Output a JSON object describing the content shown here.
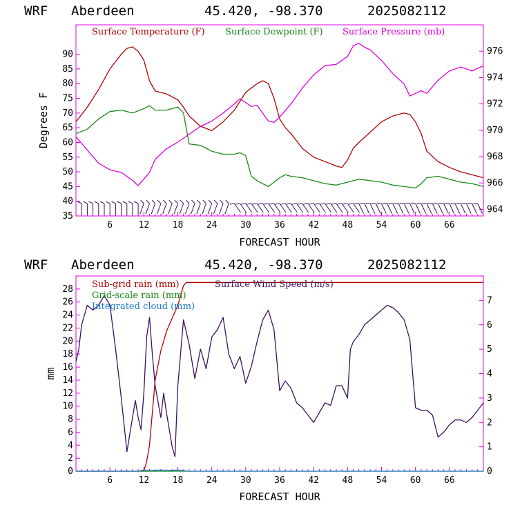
{
  "chart_data": [
    {
      "type": "line",
      "header": {
        "model": "WRF",
        "station": "Aberdeen",
        "coords": "45.420, -98.370",
        "init": "2025082112"
      },
      "xlabel": "FORECAST HOUR",
      "ylabel": "Degrees F",
      "xlim": [
        0,
        72
      ],
      "xticks": [
        "6",
        "12",
        "18",
        "24",
        "30",
        "36",
        "42",
        "48",
        "54",
        "60",
        "66"
      ],
      "ylim_left": [
        35,
        100
      ],
      "yticks_left": [
        "35",
        "40",
        "45",
        "50",
        "55",
        "60",
        "65",
        "70",
        "75",
        "80",
        "85",
        "90"
      ],
      "ylim_right": [
        963.5,
        978
      ],
      "yticks_right": [
        "964",
        "966",
        "968",
        "970",
        "972",
        "974",
        "976"
      ],
      "legend": [
        "Surface Temperature (F)",
        "Surface Dewpoint (F)",
        "Surface Pressure (mb)"
      ],
      "colors": {
        "temperature": "#b00000",
        "dewpoint": "#168816",
        "pressure": "#e000e0",
        "wind_barbs": "#3a1060"
      },
      "series": [
        {
          "name": "Surface Temperature (F)",
          "axis": "left",
          "x": [
            0,
            2,
            4,
            6,
            8,
            9,
            10,
            11,
            12,
            13,
            14,
            16,
            18,
            19,
            20,
            22,
            24,
            26,
            28,
            30,
            32,
            33,
            34,
            35,
            36,
            37,
            38,
            40,
            42,
            44,
            46,
            47,
            48,
            49,
            50,
            52,
            54,
            56,
            58,
            59,
            60,
            61,
            62,
            64,
            66,
            68,
            70,
            72
          ],
          "values": [
            67,
            72,
            78,
            85,
            90,
            92,
            92.5,
            91,
            88,
            81,
            77.5,
            76.5,
            74.5,
            72,
            69,
            65.5,
            64,
            67,
            71,
            77,
            80,
            81,
            80,
            75,
            68,
            65,
            63,
            58,
            55,
            53.5,
            52,
            51.5,
            54,
            58,
            60,
            63.5,
            67,
            69,
            70,
            69.5,
            67,
            63,
            57,
            53.5,
            51.5,
            50,
            49,
            48
          ]
        },
        {
          "name": "Surface Dewpoint (F)",
          "axis": "left",
          "x": [
            0,
            2,
            4,
            6,
            8,
            10,
            12,
            13,
            14,
            16,
            18,
            19,
            20,
            22,
            24,
            26,
            28,
            29,
            30,
            31,
            32,
            34,
            36,
            37,
            38,
            40,
            42,
            44,
            46,
            48,
            50,
            52,
            54,
            56,
            58,
            60,
            61,
            62,
            64,
            66,
            68,
            70,
            72
          ],
          "values": [
            63,
            64.5,
            68,
            70.5,
            71,
            70,
            71.5,
            72.5,
            71,
            71,
            72,
            70,
            59.5,
            59,
            57,
            56,
            56,
            56.5,
            55.5,
            48.5,
            47,
            45,
            48,
            49,
            48.5,
            48,
            47,
            46,
            45.5,
            46.5,
            47.5,
            47,
            46.5,
            45.5,
            45,
            44.5,
            46,
            48,
            48.5,
            47.5,
            46.5,
            46,
            45
          ]
        },
        {
          "name": "Surface Pressure (mb)",
          "axis": "right",
          "x": [
            0,
            1,
            2,
            4,
            6,
            8,
            10,
            11,
            12,
            13,
            14,
            16,
            18,
            20,
            22,
            24,
            26,
            28,
            29,
            30,
            31,
            32,
            34,
            35,
            36,
            38,
            40,
            42,
            44,
            46,
            48,
            49,
            50,
            51,
            52,
            54,
            56,
            58,
            59,
            60,
            61,
            62,
            64,
            66,
            68,
            70,
            72
          ],
          "values": [
            969.5,
            969,
            968.5,
            967.5,
            967,
            966.8,
            966.2,
            965.8,
            966.3,
            966.8,
            967.8,
            968.6,
            969.1,
            969.7,
            970.3,
            970.7,
            971.3,
            972,
            972.4,
            972.1,
            971.8,
            971.9,
            970.7,
            970.6,
            971,
            972,
            973.2,
            974.2,
            974.9,
            975,
            975.6,
            976.4,
            976.6,
            976.3,
            976.1,
            975.3,
            974.3,
            973.5,
            972.6,
            972.8,
            973,
            972.8,
            973.8,
            974.5,
            974.8,
            974.5,
            974.9
          ]
        }
      ],
      "wind_barbs_hours": [
        1,
        2,
        3,
        4,
        5,
        6,
        7,
        8,
        9,
        10,
        11,
        12,
        13,
        14,
        15,
        16,
        17,
        18,
        19,
        20,
        21,
        22,
        23,
        24,
        25,
        26,
        27,
        28,
        29,
        30,
        31,
        32,
        33,
        34,
        35,
        36,
        37,
        38,
        39,
        40,
        41,
        42,
        43,
        44,
        45,
        46,
        47,
        48,
        49,
        50,
        51,
        52,
        53,
        54,
        55,
        56,
        57,
        58,
        59,
        60,
        61,
        62,
        63,
        64,
        65,
        66,
        67,
        68,
        69,
        70,
        71
      ]
    },
    {
      "type": "line",
      "header": {
        "model": "WRF",
        "station": "Aberdeen",
        "coords": "45.420, -98.370",
        "init": "2025082112"
      },
      "xlabel": "FORECAST HOUR",
      "ylabel": "mm",
      "xlim": [
        0,
        72
      ],
      "xticks": [
        "6",
        "12",
        "18",
        "24",
        "30",
        "36",
        "42",
        "48",
        "54",
        "60",
        "66"
      ],
      "ylim_left": [
        0,
        30
      ],
      "yticks_left": [
        "0",
        "2",
        "4",
        "6",
        "8",
        "10",
        "12",
        "14",
        "16",
        "18",
        "20",
        "22",
        "24",
        "26",
        "28"
      ],
      "ylim_right": [
        0,
        8
      ],
      "yticks_right": [
        "0",
        "1",
        "2",
        "3",
        "4",
        "5",
        "6",
        "7"
      ],
      "legend": [
        "Sub-grid rain (mm)",
        "Grid-scale rain (mm)",
        "Integrated cloud (mm)",
        "Surface Wind Speed (m/s)"
      ],
      "colors": {
        "subgrid": "#b00000",
        "gridscale": "#168816",
        "cloud": "#1a7acc",
        "wind": "#3a1060"
      },
      "series": [
        {
          "name": "Sub-grid rain (mm)",
          "axis": "left",
          "x": [
            0,
            12,
            12.5,
            13,
            13.5,
            14,
            15,
            16,
            17,
            18,
            19,
            19.5,
            72
          ],
          "values": [
            0,
            0,
            1.5,
            4,
            9,
            14,
            18.5,
            21.5,
            23.5,
            25.5,
            28.5,
            29,
            29
          ]
        },
        {
          "name": "Grid-scale rain (mm)",
          "axis": "left",
          "x": [
            0,
            72
          ],
          "values": [
            0,
            0
          ]
        },
        {
          "name": "Integrated cloud (mm)",
          "axis": "left",
          "x": [
            0,
            11,
            12,
            13,
            14,
            15,
            16,
            17,
            18,
            19,
            20,
            72
          ],
          "values": [
            0,
            0,
            0.2,
            0.1,
            0.15,
            0.2,
            0.1,
            0.15,
            0.2,
            0.1,
            0,
            0
          ]
        },
        {
          "name": "Surface Wind Speed (m/s)",
          "axis": "right",
          "x": [
            0,
            0.5,
            1,
            2,
            3,
            4,
            5,
            6,
            7,
            8,
            9,
            10,
            10.5,
            11,
            11.5,
            12,
            12.5,
            13,
            13.5,
            14,
            15,
            15.5,
            16,
            17,
            17.5,
            18,
            19,
            20,
            21,
            22,
            23,
            24,
            25,
            26,
            27,
            28,
            29,
            30,
            31,
            32,
            33,
            34,
            35,
            36,
            37,
            38,
            39,
            40,
            41,
            42,
            43,
            44,
            45,
            46,
            47,
            48,
            48.5,
            49,
            50,
            51,
            52,
            53,
            54,
            55,
            56,
            57,
            58,
            59,
            60,
            61,
            62,
            63,
            64,
            65,
            66,
            67,
            68,
            69,
            70,
            71,
            72
          ],
          "values": [
            4.5,
            5,
            6,
            6.8,
            6.6,
            6.8,
            7.2,
            6.8,
            5,
            3,
            0.8,
            2.2,
            2.9,
            2.2,
            1.7,
            3.2,
            5.5,
            6.3,
            4.8,
            3.5,
            2.2,
            3.2,
            2.4,
            1,
            0.6,
            3.5,
            6.2,
            5.2,
            3.8,
            5,
            4.2,
            5.5,
            5.8,
            6.3,
            4.8,
            4.2,
            4.7,
            3.6,
            4.3,
            5.3,
            6.2,
            6.6,
            5.8,
            3.3,
            3.7,
            3.4,
            2.8,
            2.6,
            2.3,
            2,
            2.4,
            2.8,
            2.7,
            3.5,
            3.5,
            3,
            5,
            5.3,
            5.6,
            6,
            6.2,
            6.4,
            6.6,
            6.8,
            6.7,
            6.5,
            6.2,
            5.4,
            2.6,
            2.5,
            2.5,
            2.3,
            1.4,
            1.6,
            1.9,
            2.1,
            2.1,
            2,
            2.2,
            2.5,
            2.8
          ]
        }
      ]
    }
  ]
}
